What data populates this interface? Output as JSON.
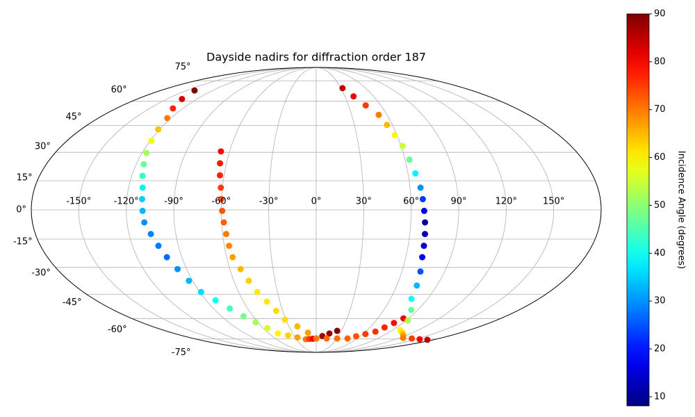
{
  "chart_data": {
    "type": "scatter",
    "projection": "mollweide",
    "title": "Dayside nadirs for diffraction order 187",
    "xlim": [
      -180,
      180
    ],
    "ylim": [
      -90,
      90
    ],
    "xticks": [
      {
        "value": -150,
        "label": "-150°"
      },
      {
        "value": -120,
        "label": "-120°"
      },
      {
        "value": -90,
        "label": "-90°"
      },
      {
        "value": -60,
        "label": "-60°"
      },
      {
        "value": -30,
        "label": "-30°"
      },
      {
        "value": 0,
        "label": "0°"
      },
      {
        "value": 30,
        "label": "30°"
      },
      {
        "value": 60,
        "label": "60°"
      },
      {
        "value": 90,
        "label": "90°"
      },
      {
        "value": 120,
        "label": "120°"
      },
      {
        "value": 150,
        "label": "150°"
      }
    ],
    "yticks": [
      {
        "value": -75,
        "label": "-75°"
      },
      {
        "value": -60,
        "label": "-60°"
      },
      {
        "value": -45,
        "label": "-45°"
      },
      {
        "value": -30,
        "label": "-30°"
      },
      {
        "value": -15,
        "label": "-15°"
      },
      {
        "value": 0,
        "label": "0°"
      },
      {
        "value": 15,
        "label": "15°"
      },
      {
        "value": 30,
        "label": "30°"
      },
      {
        "value": 45,
        "label": "45°"
      },
      {
        "value": 60,
        "label": "60°"
      },
      {
        "value": 75,
        "label": "75°"
      }
    ],
    "grid": true,
    "colormap": "jet",
    "colorbar": {
      "label": "Incidence Angle (degrees)",
      "lim": [
        8.1,
        90
      ],
      "ticks": [
        10,
        20,
        30,
        40,
        50,
        60,
        70,
        80,
        90
      ]
    },
    "series": [
      {
        "x": [
          -141,
          -135,
          -129,
          -123,
          -121,
          -119,
          -117,
          -115,
          -113,
          -111,
          -110.3,
          -109.7,
          -109,
          -106,
          -103,
          -100,
          -96.3,
          -92.7,
          -89,
          -82.3,
          -75.7,
          -69,
          -62.2,
          -55.3,
          -48.5,
          -37.5,
          -26.6,
          -15.6,
          -10.4,
          -5.2,
          0,
          8.3,
          16.7,
          25
        ],
        "y": [
          67.5,
          61.5,
          55.4,
          49.4,
          42.8,
          36.3,
          29.7,
          23.6,
          17.5,
          11.4,
          5.5,
          -0.5,
          -6.4,
          -12.4,
          -18.5,
          -24.5,
          -30.9,
          -37.3,
          -43.7,
          -48.6,
          -53.6,
          -58.5,
          -62.5,
          -66.6,
          -70.6,
          -72.1,
          -73.7,
          -75.2,
          -75,
          -74.8,
          -74.6,
          -72.6,
          -70.6,
          -68.6
        ],
        "values": [
          90,
          83,
          77,
          70,
          64,
          58,
          52,
          47,
          43,
          38,
          35,
          33,
          30,
          29,
          28,
          27,
          30,
          33,
          36,
          40,
          44,
          48,
          52,
          56,
          60,
          63,
          67,
          70,
          75,
          80,
          85,
          87,
          88,
          90
        ]
      },
      {
        "x": [
          -66,
          -64.3,
          -62.7,
          -61,
          -60.2,
          -59.4,
          -58.6,
          -57.7,
          -56.9,
          -56,
          -52.5,
          -49.1,
          -45.6,
          -40.7,
          -35.9,
          -31,
          -20.7,
          -10.3,
          0,
          15.3,
          30.7,
          46,
          54.7,
          63.3,
          72,
          76.3,
          80.7,
          85
        ],
        "y": [
          30.5,
          24.1,
          17.8,
          11.4,
          5.5,
          -0.5,
          -6.4,
          -12.4,
          -18.5,
          -24.5,
          -30.9,
          -37.3,
          -43.7,
          -49.4,
          -55.1,
          -60.8,
          -65.4,
          -70,
          -74.6,
          -74.6,
          -74.6,
          -74.6,
          -72.8,
          -71,
          -69.2,
          -66.1,
          -63,
          -59.9
        ],
        "values": [
          80,
          78,
          77,
          75,
          74,
          73,
          72,
          70,
          69,
          67,
          65,
          63,
          61,
          61,
          62,
          62,
          65,
          67,
          70,
          71,
          71,
          72,
          73,
          75,
          76,
          77,
          79,
          80
        ]
      },
      {
        "x": [
          32,
          39,
          46,
          53,
          55.7,
          58.3,
          61,
          62.9,
          64.8,
          66.7,
          67.5,
          68.2,
          69,
          69.7,
          70.3,
          71,
          73,
          75,
          77,
          84.3,
          91.7,
          99,
          107.7,
          116.3,
          125,
          140.3,
          155.7,
          171
        ],
        "y": [
          69.2,
          63.3,
          57.3,
          51.4,
          45.4,
          39.5,
          33.5,
          26.1,
          18.8,
          11.4,
          5.5,
          -0.5,
          -6.4,
          -12.4,
          -18.5,
          -24.5,
          -32.2,
          -40,
          -47.7,
          -54.5,
          -61.3,
          -68.1,
          -70.1,
          -72.1,
          -74.1,
          -74.6,
          -75.2,
          -75.7
        ],
        "values": [
          85,
          80,
          75,
          70,
          65,
          60,
          55,
          47,
          38,
          30,
          23,
          17,
          10,
          13,
          15,
          18,
          25,
          33,
          40,
          47,
          53,
          60,
          63,
          67,
          70,
          75,
          80,
          85
        ]
      }
    ]
  }
}
